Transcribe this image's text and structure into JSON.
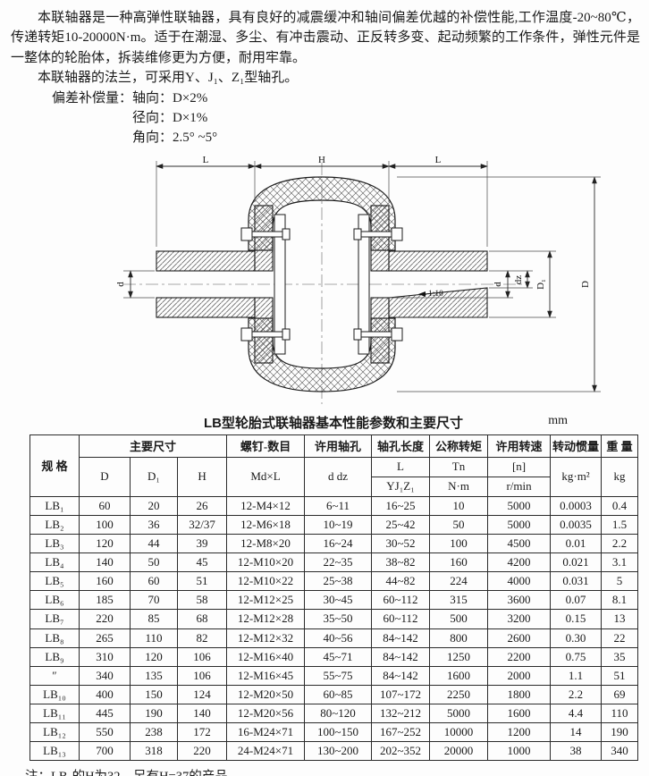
{
  "page": {
    "intro_paragraph": "本联轴器是一种高弹性联轴器，具有良好的减震缓冲和轴间偏差优越的补偿性能,工作温度-20~80℃，传递转矩10-20000N·m。适于在潮湿、多尘、有冲击震动、正反转多变、起动频繁的工作条件，弹性元件是一整体的轮胎体，拆装维修更为方便，耐用牢靠。",
    "flange_line": "本联轴器的法兰，可采用Y、J₁、Z₁型轴孔。",
    "compensation": {
      "label": "偏差补偿量：",
      "axial": "轴向：D×2%",
      "radial": "径向：D×1%",
      "angular": "角向：2.5° ~5°"
    },
    "note": "注：LB₂的H为32，另有H=37的产品。"
  },
  "diagram": {
    "labels": {
      "dim_L_left": "L",
      "dim_H": "H",
      "dim_L_right": "L",
      "dim_d_left": "d",
      "dim_d_right": "d",
      "dim_dz": "dz",
      "dim_D1": "D₁",
      "dim_D": "D",
      "taper": "1:10"
    }
  },
  "table": {
    "title": "LB型轮胎式联轴器基本性能参数和主要尺寸",
    "unit": "mm",
    "header": {
      "spec": "规  格",
      "main_dims": "主要尺寸",
      "col_D": "D",
      "col_D1": "D₁",
      "col_H": "H",
      "screw": "螺钉-数目",
      "screw_sub": "Md×L",
      "bore": "许用轴孔",
      "bore_sub": "d dz",
      "bore_len": "轴孔长度",
      "bore_len_L": "L",
      "bore_len_types": "YJ₁Z₁",
      "torque": "公称转矩",
      "torque_sym": "Tn",
      "torque_unit": "N·m",
      "speed": "许用转速",
      "speed_sym": "[n]",
      "speed_unit": "r/min",
      "inertia": "转动惯量",
      "inertia_unit": "kg·m²",
      "weight": "重  量",
      "weight_unit": "kg"
    },
    "col_keys": [
      "spec",
      "D",
      "D1",
      "H",
      "screws",
      "bore",
      "bore-length",
      "torque",
      "speed",
      "inertia",
      "weight"
    ],
    "rows": [
      [
        "LB₁",
        "60",
        "20",
        "26",
        "12-M4×12",
        "6~11",
        "16~25",
        "10",
        "5000",
        "0.0003",
        "0.4"
      ],
      [
        "LB₂",
        "100",
        "36",
        "32/37",
        "12-M6×18",
        "10~19",
        "25~42",
        "50",
        "5000",
        "0.0035",
        "1.5"
      ],
      [
        "LB₃",
        "120",
        "44",
        "39",
        "12-M8×20",
        "16~24",
        "30~52",
        "100",
        "4500",
        "0.01",
        "2.2"
      ],
      [
        "LB₄",
        "140",
        "50",
        "45",
        "12-M10×20",
        "22~35",
        "38~82",
        "160",
        "4200",
        "0.021",
        "3.1"
      ],
      [
        "LB₅",
        "160",
        "60",
        "51",
        "12-M10×22",
        "25~38",
        "44~82",
        "224",
        "4000",
        "0.031",
        "5"
      ],
      [
        "LB₆",
        "185",
        "70",
        "58",
        "12-M12×25",
        "30~45",
        "60~112",
        "315",
        "3600",
        "0.07",
        "8.1"
      ],
      [
        "LB₇",
        "220",
        "85",
        "68",
        "12-M12×28",
        "35~50",
        "60~112",
        "500",
        "3200",
        "0.15",
        "13"
      ],
      [
        "LB₈",
        "265",
        "110",
        "82",
        "12-M12×32",
        "40~56",
        "84~142",
        "800",
        "2600",
        "0.30",
        "22"
      ],
      [
        "LB₉",
        "310",
        "120",
        "106",
        "12-M16×40",
        "45~71",
        "84~142",
        "1250",
        "2200",
        "0.75",
        "35"
      ],
      [
        "″",
        "340",
        "135",
        "106",
        "12-M16×45",
        "55~75",
        "84~142",
        "1600",
        "2000",
        "1.1",
        "51"
      ],
      [
        "LB₁₀",
        "400",
        "150",
        "124",
        "12-M20×50",
        "60~85",
        "107~172",
        "2250",
        "1800",
        "2.2",
        "69"
      ],
      [
        "LB₁₁",
        "445",
        "190",
        "140",
        "12-M20×56",
        "80~120",
        "132~212",
        "5000",
        "1600",
        "4.4",
        "110"
      ],
      [
        "LB₁₂",
        "550",
        "238",
        "172",
        "16-M24×71",
        "100~150",
        "167~252",
        "10000",
        "1200",
        "14",
        "190"
      ],
      [
        "LB₁₃",
        "700",
        "318",
        "220",
        "24-M24×71",
        "130~200",
        "202~352",
        "20000",
        "1000",
        "38",
        "340"
      ]
    ]
  }
}
